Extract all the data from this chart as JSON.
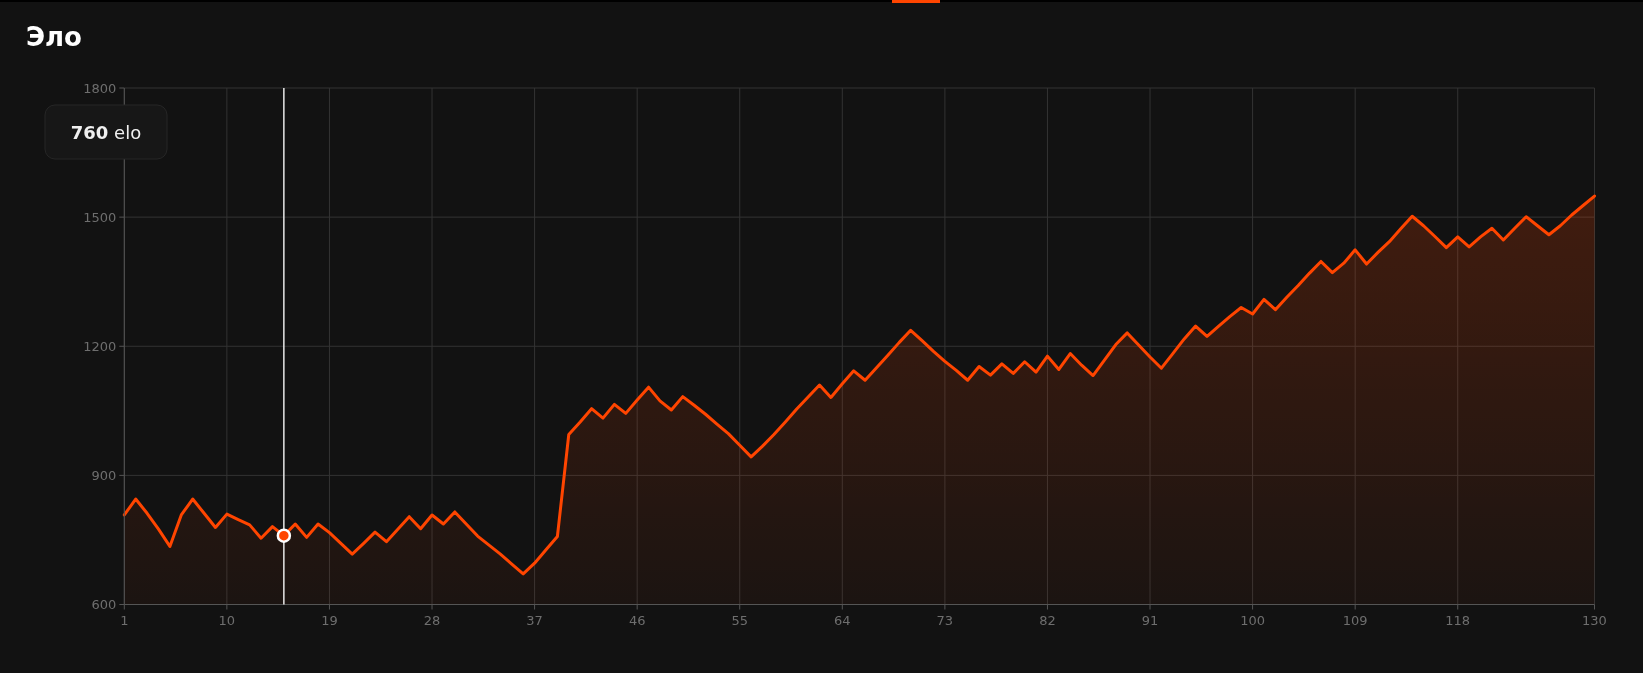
{
  "chart_data": {
    "type": "area",
    "title": "Эло",
    "x": [
      1,
      2,
      3,
      4,
      5,
      6,
      7,
      8,
      9,
      10,
      11,
      12,
      13,
      14,
      15,
      16,
      17,
      18,
      19,
      20,
      21,
      22,
      23,
      24,
      25,
      26,
      27,
      28,
      29,
      30,
      31,
      32,
      33,
      34,
      35,
      36,
      37,
      38,
      39,
      40,
      41,
      42,
      43,
      44,
      45,
      46,
      47,
      48,
      49,
      50,
      51,
      52,
      53,
      54,
      55,
      56,
      57,
      58,
      59,
      60,
      61,
      62,
      63,
      64,
      65,
      66,
      67,
      68,
      69,
      70,
      71,
      72,
      73,
      74,
      75,
      76,
      77,
      78,
      79,
      80,
      81,
      82,
      83,
      84,
      85,
      86,
      87,
      88,
      89,
      90,
      91,
      92,
      93,
      94,
      95,
      96,
      97,
      98,
      99,
      100,
      101,
      102,
      103,
      104,
      105,
      106,
      107,
      108,
      109,
      110,
      111,
      112,
      113,
      114,
      115,
      116,
      117,
      118,
      119,
      120,
      121,
      122,
      123,
      124,
      125,
      126,
      127,
      128,
      129,
      130
    ],
    "series": [
      {
        "color": "#ff4500",
        "values": [
          808,
          845,
          812,
          775,
          735,
          808,
          845,
          812,
          779,
          810,
          797,
          785,
          754,
          781,
          760,
          787,
          756,
          787,
          767,
          742,
          717,
          742,
          768,
          746,
          775,
          804,
          776,
          808,
          787,
          815,
          787,
          759,
          738,
          717,
          694,
          671,
          696,
          727,
          758,
          995,
          1024,
          1055,
          1033,
          1065,
          1044,
          1075,
          1105,
          1073,
          1052,
          1083,
          1063,
          1042,
          1019,
          997,
          970,
          943,
          968,
          995,
          1024,
          1054,
          1082,
          1110,
          1081,
          1113,
          1143,
          1121,
          1150,
          1179,
          1209,
          1237,
          1213,
          1188,
          1165,
          1144,
          1121,
          1153,
          1133,
          1159,
          1137,
          1164,
          1140,
          1177,
          1146,
          1183,
          1156,
          1132,
          1168,
          1204,
          1231,
          1203,
          1175,
          1149,
          1183,
          1217,
          1247,
          1223,
          1246,
          1269,
          1290,
          1275,
          1309,
          1285,
          1314,
          1341,
          1370,
          1397,
          1371,
          1393,
          1424,
          1391,
          1418,
          1443,
          1473,
          1502,
          1480,
          1455,
          1429,
          1454,
          1431,
          1454,
          1474,
          1447,
          1474,
          1501,
          1480,
          1459,
          1480,
          1505,
          1527,
          1549
        ]
      }
    ],
    "xlim": [
      1,
      130
    ],
    "xticks": [
      1,
      10,
      19,
      28,
      37,
      46,
      55,
      64,
      73,
      82,
      91,
      100,
      109,
      118,
      130
    ],
    "ylim": [
      600,
      1800
    ],
    "yticks": [
      600,
      900,
      1200,
      1500,
      1800
    ],
    "grid": true,
    "marker": "none",
    "line_style": "solid",
    "ref_lines": [
      {
        "axis": "x",
        "value": 15,
        "color": "#e8e8e8"
      }
    ],
    "annotations": [
      "760 elo"
    ]
  }
}
